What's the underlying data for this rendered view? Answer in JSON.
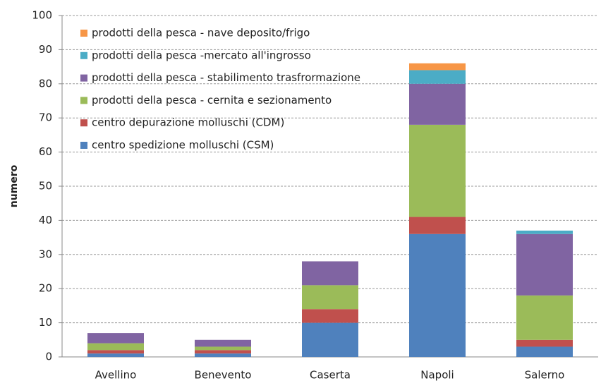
{
  "chart_data": {
    "type": "stacked_bar",
    "y_label": "numero",
    "categories": [
      "Avellino",
      "Benevento",
      "Caserta",
      "Napoli",
      "Salerno"
    ],
    "series": [
      {
        "name": "centro spedizione molluschi (CSM)",
        "color": "#4f81bd",
        "values": [
          1,
          1,
          10,
          36,
          3
        ]
      },
      {
        "name": "centro depurazione molluschi (CDM)",
        "color": "#c0504d",
        "values": [
          1,
          1,
          4,
          5,
          2
        ]
      },
      {
        "name": "prodotti della pesca - cernita e sezionamento",
        "color": "#9bbb59",
        "values": [
          2,
          1,
          7,
          27,
          13
        ]
      },
      {
        "name": "prodotti della pesca - stabilimento trasfrormazione",
        "color": "#8064a2",
        "values": [
          3,
          2,
          7,
          12,
          18
        ]
      },
      {
        "name": "prodotti della pesca -mercato all'ingrosso",
        "color": "#4bacc6",
        "values": [
          0,
          0,
          0,
          4,
          1
        ]
      },
      {
        "name": "prodotti della pesca - nave deposito/frigo",
        "color": "#f79646",
        "values": [
          0,
          0,
          0,
          2,
          0
        ]
      }
    ],
    "ylim": [
      0,
      100
    ],
    "yticks": [
      0,
      10,
      20,
      30,
      40,
      50,
      60,
      70,
      80,
      90,
      100
    ],
    "grid": true,
    "legend": "top-left"
  }
}
